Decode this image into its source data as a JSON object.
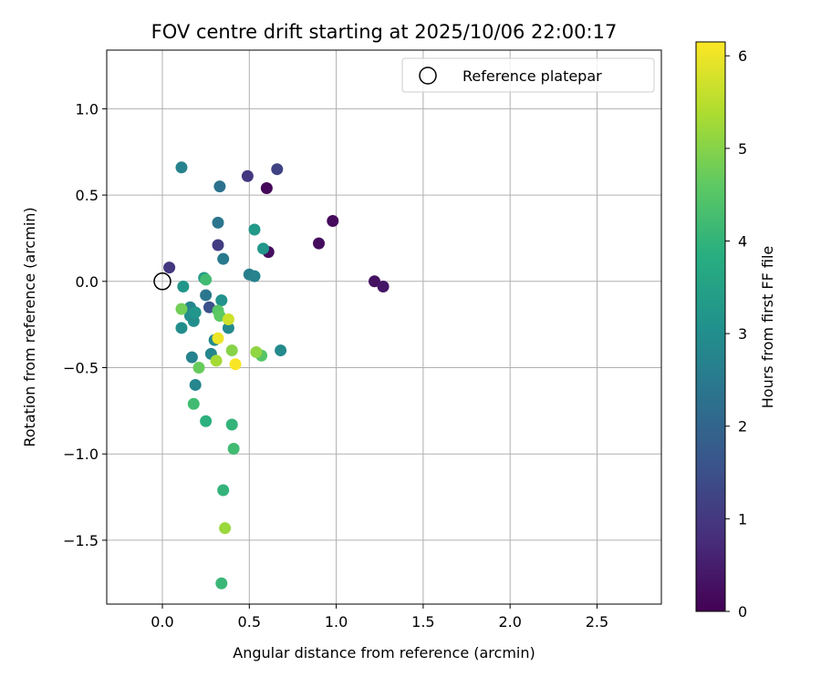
{
  "chart_data": {
    "type": "scatter",
    "title": "FOV centre drift starting at 2025/10/06 22:00:17",
    "xlabel": "Angular distance from reference (arcmin)",
    "ylabel": "Rotation from reference (arcmin)",
    "xlim": [
      -0.32,
      2.87
    ],
    "ylim": [
      -1.87,
      1.34
    ],
    "xticks": [
      {
        "value": 0.0,
        "label": "0.0"
      },
      {
        "value": 0.5,
        "label": "0.5"
      },
      {
        "value": 1.0,
        "label": "1.0"
      },
      {
        "value": 1.5,
        "label": "1.5"
      },
      {
        "value": 2.0,
        "label": "2.0"
      },
      {
        "value": 2.5,
        "label": "2.5"
      }
    ],
    "yticks": [
      {
        "value": 1.0,
        "label": "1.0"
      },
      {
        "value": 0.5,
        "label": "0.5"
      },
      {
        "value": 0.0,
        "label": "0.0"
      },
      {
        "value": -0.5,
        "label": "−0.5"
      },
      {
        "value": -1.0,
        "label": "−1.0"
      },
      {
        "value": -1.5,
        "label": "−1.5"
      }
    ],
    "grid": true,
    "legend": {
      "placement": "top-right",
      "entries": [
        {
          "label": "Reference platepar",
          "marker": "open-circle"
        }
      ]
    },
    "reference_point": {
      "x": 0.0,
      "y": 0.0
    },
    "colorbar": {
      "label": "Hours from first FF file",
      "range": [
        0,
        6.15
      ],
      "colormap": "viridis",
      "ticks": [
        {
          "value": 0,
          "label": "0"
        },
        {
          "value": 1,
          "label": "1"
        },
        {
          "value": 2,
          "label": "2"
        },
        {
          "value": 3,
          "label": "3"
        },
        {
          "value": 4,
          "label": "4"
        },
        {
          "value": 5,
          "label": "5"
        },
        {
          "value": 6,
          "label": "6"
        }
      ]
    },
    "points": [
      {
        "x": 0.6,
        "y": 0.54,
        "hours": 0.1
      },
      {
        "x": 0.98,
        "y": 0.35,
        "hours": 0.15
      },
      {
        "x": 0.9,
        "y": 0.22,
        "hours": 0.2
      },
      {
        "x": 0.61,
        "y": 0.17,
        "hours": 0.25
      },
      {
        "x": 1.22,
        "y": 0.0,
        "hours": 0.3
      },
      {
        "x": 1.27,
        "y": -0.03,
        "hours": 0.35
      },
      {
        "x": 0.49,
        "y": 0.61,
        "hours": 1.0
      },
      {
        "x": 0.66,
        "y": 0.65,
        "hours": 1.2
      },
      {
        "x": 0.32,
        "y": 0.21,
        "hours": 1.1
      },
      {
        "x": 0.04,
        "y": 0.08,
        "hours": 1.0
      },
      {
        "x": 0.27,
        "y": -0.15,
        "hours": 1.5
      },
      {
        "x": 0.33,
        "y": 0.55,
        "hours": 2.3
      },
      {
        "x": 0.32,
        "y": 0.34,
        "hours": 2.4
      },
      {
        "x": 0.35,
        "y": 0.13,
        "hours": 2.5
      },
      {
        "x": 0.11,
        "y": 0.66,
        "hours": 2.7
      },
      {
        "x": 0.25,
        "y": -0.08,
        "hours": 2.4
      },
      {
        "x": 0.5,
        "y": 0.04,
        "hours": 2.6
      },
      {
        "x": 0.53,
        "y": 0.03,
        "hours": 2.7
      },
      {
        "x": 0.53,
        "y": 0.3,
        "hours": 3.3
      },
      {
        "x": 0.58,
        "y": 0.19,
        "hours": 3.2
      },
      {
        "x": 0.12,
        "y": -0.03,
        "hours": 3.2
      },
      {
        "x": 0.34,
        "y": -0.11,
        "hours": 3.1
      },
      {
        "x": 0.16,
        "y": -0.15,
        "hours": 2.8
      },
      {
        "x": 0.16,
        "y": -0.2,
        "hours": 3.0
      },
      {
        "x": 0.18,
        "y": -0.23,
        "hours": 3.0
      },
      {
        "x": 0.19,
        "y": -0.18,
        "hours": 3.2
      },
      {
        "x": 0.11,
        "y": -0.27,
        "hours": 3.0
      },
      {
        "x": 0.38,
        "y": -0.27,
        "hours": 2.9
      },
      {
        "x": 0.3,
        "y": -0.34,
        "hours": 2.9
      },
      {
        "x": 0.28,
        "y": -0.42,
        "hours": 2.8
      },
      {
        "x": 0.17,
        "y": -0.44,
        "hours": 2.7
      },
      {
        "x": 0.68,
        "y": -0.4,
        "hours": 2.9
      },
      {
        "x": 0.19,
        "y": -0.6,
        "hours": 2.8
      },
      {
        "x": 0.24,
        "y": 0.02,
        "hours": 3.3
      },
      {
        "x": 0.25,
        "y": 0.01,
        "hours": 4.2
      },
      {
        "x": 0.32,
        "y": -0.17,
        "hours": 4.5
      },
      {
        "x": 0.33,
        "y": -0.2,
        "hours": 4.6
      },
      {
        "x": 0.11,
        "y": -0.16,
        "hours": 4.8
      },
      {
        "x": 0.57,
        "y": -0.43,
        "hours": 4.5
      },
      {
        "x": 0.21,
        "y": -0.5,
        "hours": 4.7
      },
      {
        "x": 0.18,
        "y": -0.71,
        "hours": 4.2
      },
      {
        "x": 0.25,
        "y": -0.81,
        "hours": 3.9
      },
      {
        "x": 0.4,
        "y": -0.83,
        "hours": 4.0
      },
      {
        "x": 0.41,
        "y": -0.97,
        "hours": 4.2
      },
      {
        "x": 0.35,
        "y": -1.21,
        "hours": 4.0
      },
      {
        "x": 0.34,
        "y": -1.75,
        "hours": 4.1
      },
      {
        "x": 0.36,
        "y": -1.43,
        "hours": 5.2
      },
      {
        "x": 0.4,
        "y": -0.4,
        "hours": 5.0
      },
      {
        "x": 0.54,
        "y": -0.41,
        "hours": 5.1
      },
      {
        "x": 0.31,
        "y": -0.46,
        "hours": 5.3
      },
      {
        "x": 0.38,
        "y": -0.22,
        "hours": 5.7
      },
      {
        "x": 0.32,
        "y": -0.33,
        "hours": 6.0
      },
      {
        "x": 0.42,
        "y": -0.48,
        "hours": 6.1
      }
    ]
  }
}
